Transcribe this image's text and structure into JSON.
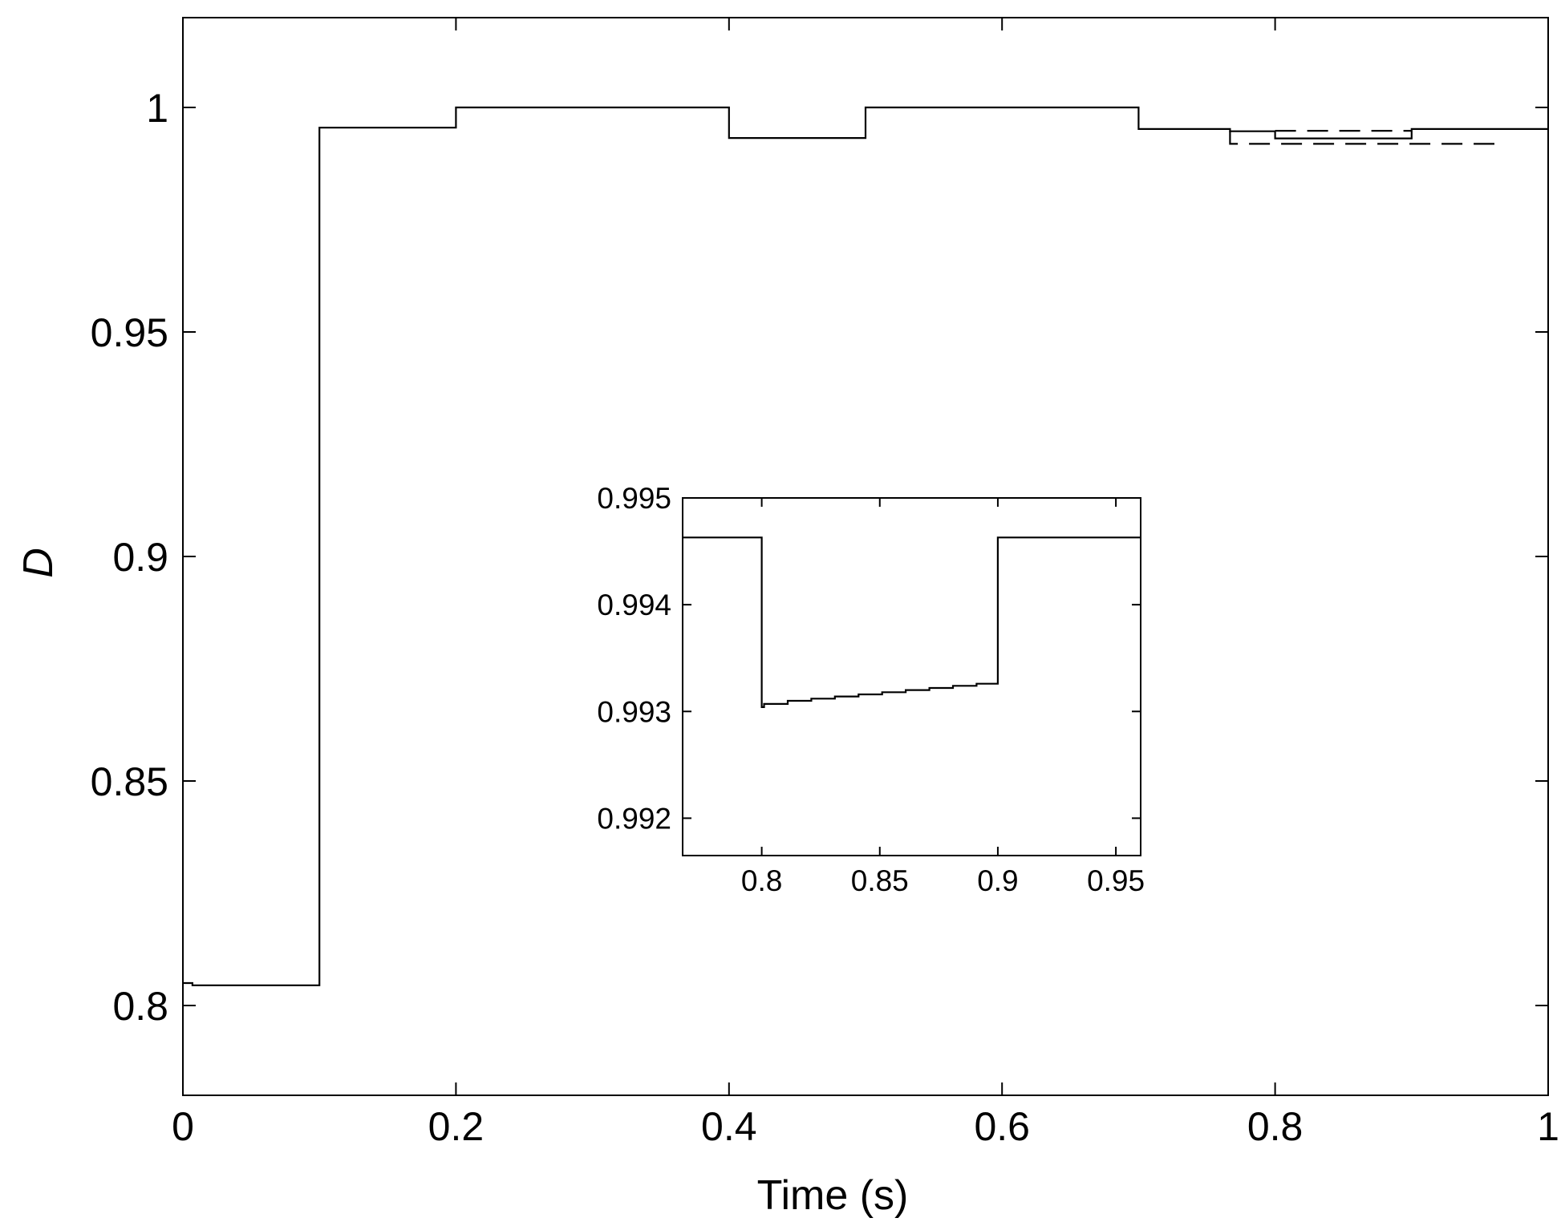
{
  "chart_data": [
    {
      "type": "line",
      "xlabel": "Time (s)",
      "ylabel": "D",
      "xlim": [
        0,
        1
      ],
      "ylim": [
        0.78,
        1.02
      ],
      "xticks": [
        0,
        0.2,
        0.4,
        0.6,
        0.8,
        1
      ],
      "xtick_labels": [
        "0",
        "0.2",
        "0.4",
        "0.6",
        "0.8",
        "1"
      ],
      "yticks": [
        0.8,
        0.85,
        0.9,
        0.95,
        1
      ],
      "ytick_labels": [
        "0.8",
        "0.85",
        "0.9",
        "0.95",
        "1"
      ],
      "grid": false,
      "series": [
        {
          "style": "solid",
          "x": [
            0,
            0.007,
            0.007,
            0.1,
            0.1,
            0.2,
            0.2,
            0.4,
            0.4,
            0.5,
            0.5,
            0.7,
            0.7,
            0.767,
            0.767,
            0.8,
            0.8,
            0.9,
            0.9,
            1.0
          ],
          "y": [
            0.805,
            0.805,
            0.8045,
            0.8045,
            0.9955,
            0.9955,
            1.0,
            1.0,
            0.9932,
            0.9932,
            1.0,
            1.0,
            0.9952,
            0.9952,
            0.9947,
            0.9947,
            0.9931,
            0.9931,
            0.9952,
            0.9952
          ]
        },
        {
          "style": "dashed",
          "x": [
            0.767,
            0.767,
            0.96,
            0.96
          ],
          "y": [
            0.9948,
            0.9919,
            0.9919,
            0.9933
          ]
        },
        {
          "style": "dashed",
          "x": [
            0.8,
            0.9
          ],
          "y": [
            0.9948,
            0.9948
          ]
        }
      ]
    },
    {
      "type": "line",
      "title": "",
      "xlim": [
        0.7665,
        0.9605
      ],
      "ylim": [
        0.99165,
        0.995
      ],
      "xticks": [
        0.8,
        0.85,
        0.9,
        0.95
      ],
      "xtick_labels": [
        "0.8",
        "0.85",
        "0.9",
        "0.95"
      ],
      "yticks": [
        0.992,
        0.993,
        0.994,
        0.995
      ],
      "ytick_labels": [
        "0.992",
        "0.993",
        "0.994",
        "0.995"
      ],
      "grid": false,
      "series": [
        {
          "style": "solid",
          "x": [
            0.7665,
            0.8,
            0.8,
            0.801,
            0.801,
            0.811,
            0.811,
            0.821,
            0.821,
            0.831,
            0.831,
            0.841,
            0.841,
            0.851,
            0.851,
            0.861,
            0.861,
            0.871,
            0.871,
            0.881,
            0.881,
            0.891,
            0.891,
            0.9,
            0.9,
            0.9605
          ],
          "y": [
            0.99463,
            0.99463,
            0.99304,
            0.99304,
            0.99307,
            0.99307,
            0.9931,
            0.9931,
            0.99312,
            0.99312,
            0.99314,
            0.99314,
            0.99316,
            0.99316,
            0.99318,
            0.99318,
            0.9932,
            0.9932,
            0.99322,
            0.99322,
            0.99324,
            0.99324,
            0.99326,
            0.99326,
            0.99463,
            0.99463
          ]
        }
      ]
    }
  ]
}
